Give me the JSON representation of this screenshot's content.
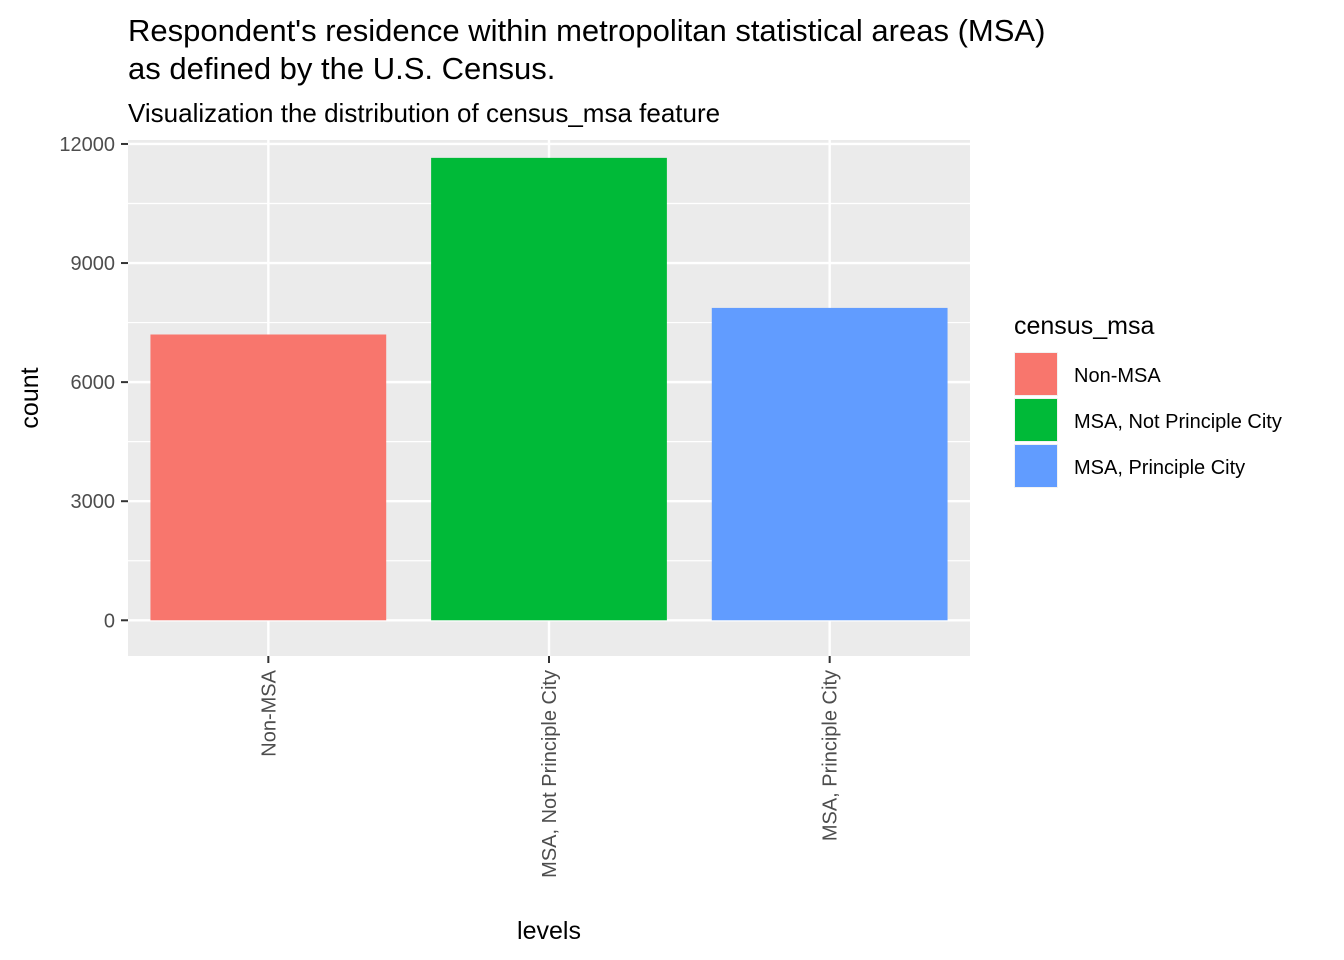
{
  "chart_data": {
    "type": "bar",
    "title": "Respondent's residence within metropolitan statistical areas (MSA)",
    "title_line2": "as defined by the U.S. Census.",
    "subtitle": "Visualization the distribution of census_msa feature",
    "xlabel": "levels",
    "ylabel": "count",
    "categories": [
      "Non-MSA",
      "MSA, Not Principle  City",
      "MSA, Principle City"
    ],
    "values": [
      7200,
      11650,
      7870
    ],
    "colors": [
      "#F8766D",
      "#00BA38",
      "#619CFF"
    ],
    "ylim": [
      -900,
      12100
    ],
    "yticks": [
      0,
      3000,
      6000,
      9000,
      12000
    ],
    "grid": true,
    "legend": {
      "title": "census_msa",
      "position": "right",
      "entries": [
        "Non-MSA",
        "MSA, Not Principle  City",
        "MSA, Principle City"
      ]
    }
  }
}
